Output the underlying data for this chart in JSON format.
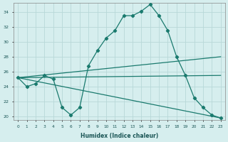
{
  "xlabel": "Humidex (Indice chaleur)",
  "background_color": "#d6eeee",
  "grid_color": "#b8d8d8",
  "line_color": "#1a7a6e",
  "xlim": [
    -0.5,
    23.5
  ],
  "ylim": [
    19.5,
    35.2
  ],
  "yticks": [
    20,
    22,
    24,
    26,
    28,
    30,
    32,
    34
  ],
  "xticks": [
    0,
    1,
    2,
    3,
    4,
    5,
    6,
    7,
    8,
    9,
    10,
    11,
    12,
    13,
    14,
    15,
    16,
    17,
    18,
    19,
    20,
    21,
    22,
    23
  ],
  "line1_x": [
    0,
    1,
    2,
    3,
    4,
    5,
    6,
    7,
    8,
    9,
    10,
    11,
    12,
    13,
    14,
    15,
    16,
    17,
    18,
    19,
    20,
    21,
    22,
    23
  ],
  "line1_y": [
    25.2,
    24.0,
    24.4,
    25.5,
    25.0,
    21.2,
    20.2,
    21.2,
    26.8,
    28.8,
    30.5,
    31.5,
    33.5,
    33.5,
    34.1,
    35.0,
    33.5,
    31.5,
    28.0,
    25.5,
    22.5,
    21.2,
    20.2,
    19.8
  ],
  "line2_x": [
    0,
    23
  ],
  "line2_y": [
    25.2,
    25.5
  ],
  "line3_x": [
    0,
    23
  ],
  "line3_y": [
    25.2,
    28.0
  ],
  "line4_x": [
    0,
    23
  ],
  "line4_y": [
    25.2,
    19.8
  ]
}
